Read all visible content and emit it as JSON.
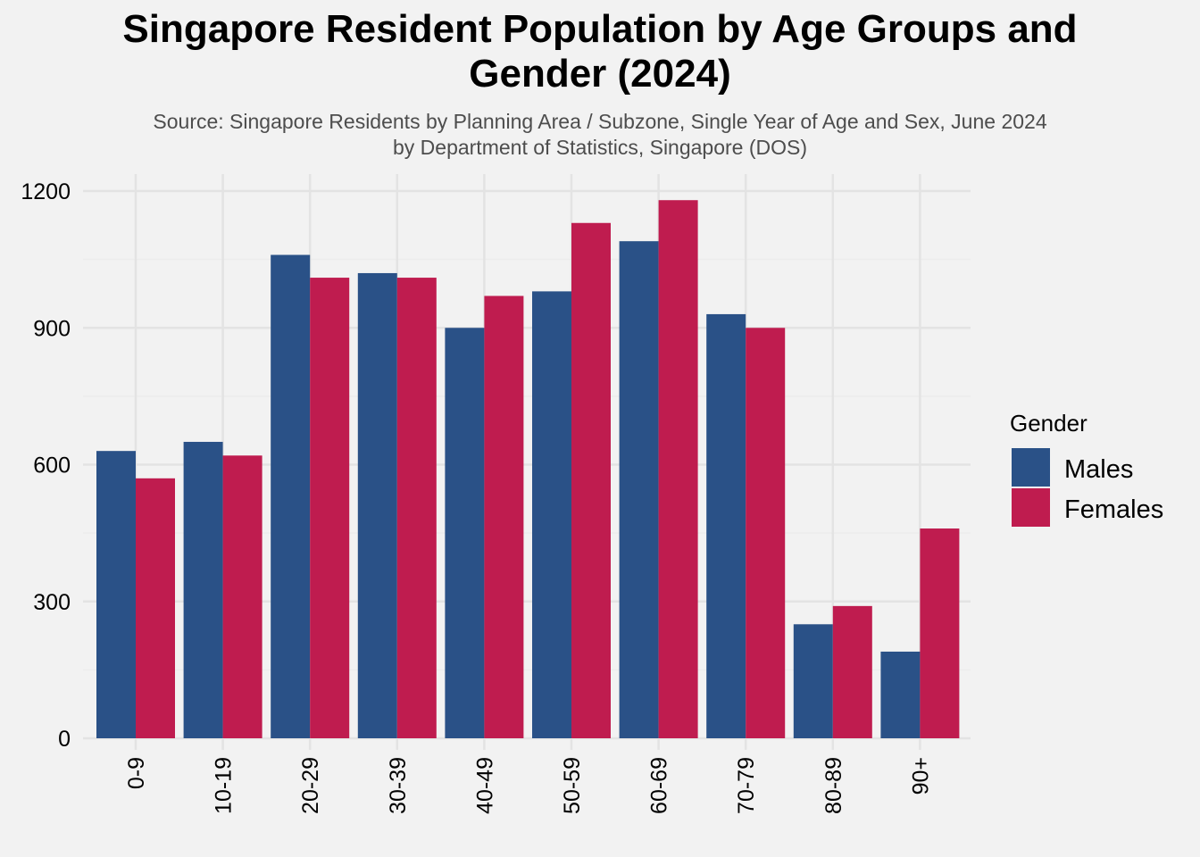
{
  "chart_data": {
    "type": "bar",
    "title_line1": "Singapore Resident Population by Age Groups and",
    "title_line2": "Gender (2024)",
    "subtitle_line1": "Source: Singapore Residents by Planning Area / Subzone, Single Year of Age and Sex, June 2024",
    "subtitle_line2": "by Department of Statistics, Singapore (DOS)",
    "xlabel": "",
    "ylabel": "",
    "categories": [
      "0-9",
      "10-19",
      "20-29",
      "30-39",
      "40-49",
      "50-59",
      "60-69",
      "70-79",
      "80-89",
      "90+"
    ],
    "series": [
      {
        "name": "Males",
        "color": "#2a5187",
        "values": [
          630,
          650,
          1060,
          1020,
          900,
          980,
          1090,
          930,
          250,
          190
        ]
      },
      {
        "name": "Females",
        "color": "#bf1c4f",
        "values": [
          570,
          620,
          1010,
          1010,
          970,
          1130,
          1180,
          900,
          290,
          460
        ]
      }
    ],
    "ylim": [
      0,
      1200
    ],
    "yticks": [
      0,
      300,
      600,
      900,
      1200
    ],
    "grid": true,
    "legend_title": "Gender",
    "legend_position": "right"
  },
  "colors": {
    "background": "#f2f2f2",
    "grid_major": "#e3e3e3",
    "grid_minor": "#ececec"
  }
}
